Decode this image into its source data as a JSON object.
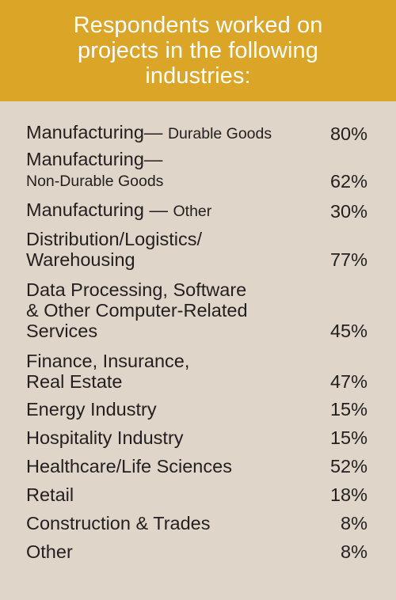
{
  "header": {
    "title": "Respondents worked on projects in the following industries:"
  },
  "chart_data": {
    "type": "table",
    "title": "Respondents worked on projects in the following industries:",
    "rows": [
      {
        "label_main": "Manufacturing— ",
        "label_sub": "Durable Goods",
        "value": "80%"
      },
      {
        "label_main": "Manufacturing—\n",
        "label_sub": "Non-Durable Goods",
        "value": "62%"
      },
      {
        "label_main": "Manufacturing — ",
        "label_sub": "Other",
        "value": "30%"
      },
      {
        "label_main": "Distribution/Logistics/\nWarehousing",
        "label_sub": "",
        "value": "77%"
      },
      {
        "label_main": "Data Processing, Software\n& Other Computer-Related\nServices",
        "label_sub": "",
        "value": "45%"
      },
      {
        "label_main": "Finance, Insurance,\nReal Estate",
        "label_sub": "",
        "value": "47%"
      },
      {
        "label_main": "Energy Industry",
        "label_sub": "",
        "value": "15%"
      },
      {
        "label_main": "Hospitality Industry",
        "label_sub": "",
        "value": "15%"
      },
      {
        "label_main": "Healthcare/Life Sciences",
        "label_sub": "",
        "value": "52%"
      },
      {
        "label_main": "Retail",
        "label_sub": "",
        "value": "18%"
      },
      {
        "label_main": "Construction & Trades",
        "label_sub": "",
        "value": "8%"
      },
      {
        "label_main": "Other",
        "label_sub": "",
        "value": "8%"
      }
    ],
    "values": [
      80,
      62,
      30,
      77,
      45,
      47,
      15,
      15,
      52,
      18,
      8,
      8
    ]
  },
  "colors": {
    "header_bg": "#dba527",
    "body_bg": "#dfd5c8",
    "text": "#231f20",
    "header_text": "#ffffff"
  }
}
